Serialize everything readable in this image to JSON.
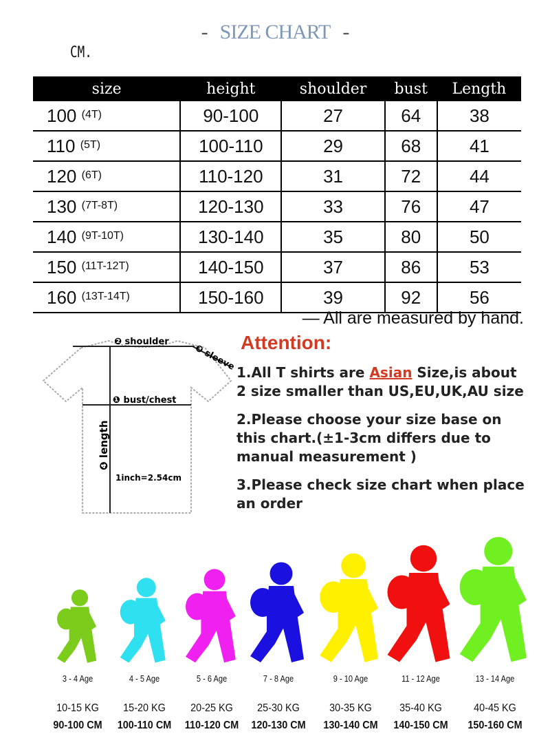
{
  "title": "SIZE CHART",
  "title_dash": "-",
  "unit": "CM.",
  "table": {
    "headers": [
      "size",
      "height",
      "shoulder",
      "bust",
      "Length"
    ],
    "rows": [
      {
        "size": "100",
        "label": "(4T)",
        "height": "90-100",
        "shoulder": "27",
        "bust": "64",
        "length": "38"
      },
      {
        "size": "110",
        "label": "(5T)",
        "height": "100-110",
        "shoulder": "29",
        "bust": "68",
        "length": "41"
      },
      {
        "size": "120",
        "label": "(6T)",
        "height": "110-120",
        "shoulder": "31",
        "bust": "72",
        "length": "44"
      },
      {
        "size": "130",
        "label": "(7T-8T)",
        "height": "120-130",
        "shoulder": "33",
        "bust": "76",
        "length": "47"
      },
      {
        "size": "140",
        "label": "(9T-10T)",
        "height": "130-140",
        "shoulder": "35",
        "bust": "80",
        "length": "50"
      },
      {
        "size": "150",
        "label": "(11T-12T)",
        "height": "140-150",
        "shoulder": "37",
        "bust": "86",
        "length": "53"
      },
      {
        "size": "160",
        "label": "(13T-14T)",
        "height": "150-160",
        "shoulder": "39",
        "bust": "92",
        "length": "56"
      }
    ]
  },
  "note": "— All are measured by hand.",
  "diagram": {
    "shoulder": "❷ shoulder",
    "sleeve": "❸ sleeve",
    "bust": "❶ bust/chest",
    "length": "❹ length",
    "inch": "1inch=2.54cm"
  },
  "attention": {
    "title": "Attention:",
    "item1_a": "1.All T shirts are ",
    "item1_asian": "Asian",
    "item1_b": " Size,is about 2 size smaller than US,EU,UK,AU size",
    "item2": "2.Please choose your size base on this chart.(±1-3cm differs due to manual measurement )",
    "item3": "3.Please check size chart when place an order"
  },
  "kids": [
    {
      "age": "3 - 4 Age",
      "kg": "10-15 KG",
      "cm": "90-100 CM",
      "color": "#7ccc1c"
    },
    {
      "age": "4 - 5 Age",
      "kg": "15-20 KG",
      "cm": "100-110 CM",
      "color": "#2ee0f0"
    },
    {
      "age": "5 - 6 Age",
      "kg": "20-25 KG",
      "cm": "110-120 CM",
      "color": "#f020f0"
    },
    {
      "age": "7 - 8 Age",
      "kg": "25-30 KG",
      "cm": "120-130 CM",
      "color": "#1a10e0"
    },
    {
      "age": "9 - 10 Age",
      "kg": "30-35 KG",
      "cm": "130-140 CM",
      "color": "#fff000"
    },
    {
      "age": "11 - 12 Age",
      "kg": "35-40 KG",
      "cm": "140-150 CM",
      "color": "#f01010"
    },
    {
      "age": "13 - 14 Age",
      "kg": "40-45 KG",
      "cm": "150-160 CM",
      "color": "#70f020"
    }
  ]
}
